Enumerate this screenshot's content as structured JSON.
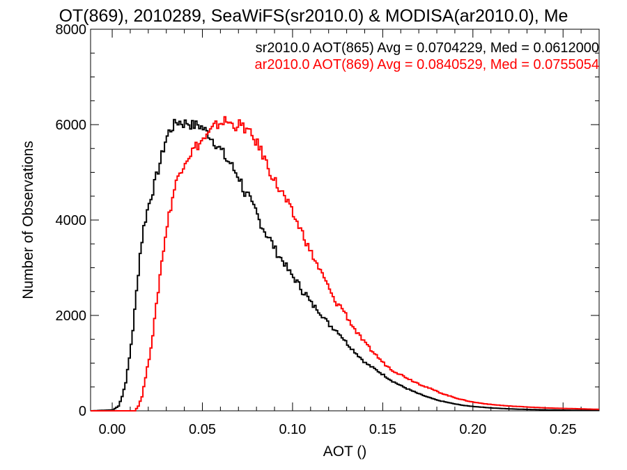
{
  "chart_data": {
    "type": "line",
    "title": "OT(869), 2010289, SeaWiFS(sr2010.0) & MODISA(ar2010.0), Me",
    "xlabel": "AOT ()",
    "ylabel": "Number of Observations",
    "xlim": [
      -0.012,
      0.27
    ],
    "ylim": [
      0,
      8000
    ],
    "x_ticks": [
      {
        "value": 0.0,
        "label": "0.00"
      },
      {
        "value": 0.05,
        "label": "0.05"
      },
      {
        "value": 0.1,
        "label": "0.10"
      },
      {
        "value": 0.15,
        "label": "0.15"
      },
      {
        "value": 0.2,
        "label": "0.20"
      },
      {
        "value": 0.25,
        "label": "0.25"
      }
    ],
    "y_ticks": [
      {
        "value": 0,
        "label": "0"
      },
      {
        "value": 2000,
        "label": "2000"
      },
      {
        "value": 4000,
        "label": "4000"
      },
      {
        "value": 6000,
        "label": "6000"
      },
      {
        "value": 8000,
        "label": "8000"
      }
    ],
    "grid": false,
    "legend_position": "top-right",
    "series": [
      {
        "name": "sr2010.0 AOT(865) Avg = 0.0704229, Med = 0.0612000",
        "color": "#000000",
        "step": true,
        "points": [
          [
            -0.012,
            0
          ],
          [
            0.0,
            20
          ],
          [
            0.003,
            100
          ],
          [
            0.005,
            300
          ],
          [
            0.007,
            600
          ],
          [
            0.009,
            1100
          ],
          [
            0.011,
            1700
          ],
          [
            0.013,
            2500
          ],
          [
            0.015,
            3300
          ],
          [
            0.017,
            3850
          ],
          [
            0.019,
            4200
          ],
          [
            0.021,
            4500
          ],
          [
            0.023,
            4750
          ],
          [
            0.025,
            5050
          ],
          [
            0.027,
            5350
          ],
          [
            0.029,
            5650
          ],
          [
            0.031,
            5850
          ],
          [
            0.033,
            5950
          ],
          [
            0.035,
            6050
          ],
          [
            0.037,
            6060
          ],
          [
            0.039,
            6020
          ],
          [
            0.041,
            6050
          ],
          [
            0.043,
            6000
          ],
          [
            0.045,
            5980
          ],
          [
            0.047,
            6000
          ],
          [
            0.049,
            5950
          ],
          [
            0.051,
            5880
          ],
          [
            0.053,
            5800
          ],
          [
            0.055,
            5700
          ],
          [
            0.057,
            5600
          ],
          [
            0.059,
            5500
          ],
          [
            0.061,
            5400
          ],
          [
            0.063,
            5250
          ],
          [
            0.065,
            5200
          ],
          [
            0.067,
            5050
          ],
          [
            0.069,
            4950
          ],
          [
            0.071,
            4800
          ],
          [
            0.073,
            4550
          ],
          [
            0.075,
            4500
          ],
          [
            0.077,
            4300
          ],
          [
            0.079,
            4200
          ],
          [
            0.081,
            4000
          ],
          [
            0.083,
            3850
          ],
          [
            0.085,
            3700
          ],
          [
            0.087,
            3600
          ],
          [
            0.089,
            3450
          ],
          [
            0.091,
            3300
          ],
          [
            0.093,
            3200
          ],
          [
            0.095,
            3100
          ],
          [
            0.097,
            2950
          ],
          [
            0.099,
            2850
          ],
          [
            0.101,
            2750
          ],
          [
            0.103,
            2650
          ],
          [
            0.105,
            2500
          ],
          [
            0.107,
            2450
          ],
          [
            0.109,
            2300
          ],
          [
            0.111,
            2200
          ],
          [
            0.113,
            2150
          ],
          [
            0.115,
            2050
          ],
          [
            0.117,
            1950
          ],
          [
            0.12,
            1800
          ],
          [
            0.125,
            1650
          ],
          [
            0.13,
            1400
          ],
          [
            0.135,
            1200
          ],
          [
            0.14,
            1000
          ],
          [
            0.145,
            880
          ],
          [
            0.15,
            750
          ],
          [
            0.155,
            620
          ],
          [
            0.16,
            520
          ],
          [
            0.165,
            430
          ],
          [
            0.17,
            350
          ],
          [
            0.175,
            280
          ],
          [
            0.18,
            220
          ],
          [
            0.185,
            180
          ],
          [
            0.19,
            140
          ],
          [
            0.195,
            110
          ],
          [
            0.2,
            90
          ],
          [
            0.21,
            60
          ],
          [
            0.22,
            40
          ],
          [
            0.23,
            28
          ],
          [
            0.24,
            20
          ],
          [
            0.25,
            14
          ],
          [
            0.26,
            10
          ],
          [
            0.27,
            8
          ]
        ]
      },
      {
        "name": "ar2010.0 AOT(869) Avg = 0.0840529, Med = 0.0755054",
        "color": "#ff0000",
        "step": true,
        "points": [
          [
            -0.012,
            0
          ],
          [
            0.012,
            0
          ],
          [
            0.014,
            100
          ],
          [
            0.016,
            300
          ],
          [
            0.018,
            700
          ],
          [
            0.02,
            1100
          ],
          [
            0.022,
            1600
          ],
          [
            0.024,
            2200
          ],
          [
            0.026,
            2850
          ],
          [
            0.028,
            3400
          ],
          [
            0.03,
            3900
          ],
          [
            0.032,
            4300
          ],
          [
            0.034,
            4650
          ],
          [
            0.036,
            4900
          ],
          [
            0.038,
            5100
          ],
          [
            0.04,
            5250
          ],
          [
            0.042,
            5350
          ],
          [
            0.044,
            5450
          ],
          [
            0.046,
            5550
          ],
          [
            0.048,
            5600
          ],
          [
            0.05,
            5700
          ],
          [
            0.052,
            5750
          ],
          [
            0.054,
            5850
          ],
          [
            0.056,
            5950
          ],
          [
            0.058,
            6000
          ],
          [
            0.06,
            6050
          ],
          [
            0.062,
            6080
          ],
          [
            0.064,
            6050
          ],
          [
            0.066,
            6000
          ],
          [
            0.068,
            5980
          ],
          [
            0.07,
            6000
          ],
          [
            0.072,
            5950
          ],
          [
            0.074,
            5900
          ],
          [
            0.076,
            5800
          ],
          [
            0.078,
            5700
          ],
          [
            0.08,
            5600
          ],
          [
            0.082,
            5450
          ],
          [
            0.084,
            5300
          ],
          [
            0.086,
            5100
          ],
          [
            0.088,
            4950
          ],
          [
            0.09,
            4800
          ],
          [
            0.092,
            4650
          ],
          [
            0.094,
            4550
          ],
          [
            0.096,
            4400
          ],
          [
            0.098,
            4250
          ],
          [
            0.1,
            4100
          ],
          [
            0.102,
            3950
          ],
          [
            0.104,
            3800
          ],
          [
            0.106,
            3650
          ],
          [
            0.108,
            3450
          ],
          [
            0.11,
            3300
          ],
          [
            0.112,
            3150
          ],
          [
            0.114,
            3000
          ],
          [
            0.116,
            2850
          ],
          [
            0.118,
            2700
          ],
          [
            0.12,
            2550
          ],
          [
            0.122,
            2350
          ],
          [
            0.124,
            2250
          ],
          [
            0.126,
            2200
          ],
          [
            0.128,
            2100
          ],
          [
            0.13,
            1950
          ],
          [
            0.135,
            1650
          ],
          [
            0.14,
            1400
          ],
          [
            0.145,
            1200
          ],
          [
            0.15,
            1000
          ],
          [
            0.155,
            850
          ],
          [
            0.16,
            750
          ],
          [
            0.165,
            650
          ],
          [
            0.17,
            560
          ],
          [
            0.175,
            480
          ],
          [
            0.18,
            400
          ],
          [
            0.185,
            330
          ],
          [
            0.19,
            270
          ],
          [
            0.195,
            220
          ],
          [
            0.2,
            180
          ],
          [
            0.21,
            130
          ],
          [
            0.22,
            100
          ],
          [
            0.23,
            80
          ],
          [
            0.24,
            60
          ],
          [
            0.25,
            50
          ],
          [
            0.26,
            40
          ],
          [
            0.27,
            30
          ]
        ]
      }
    ]
  }
}
